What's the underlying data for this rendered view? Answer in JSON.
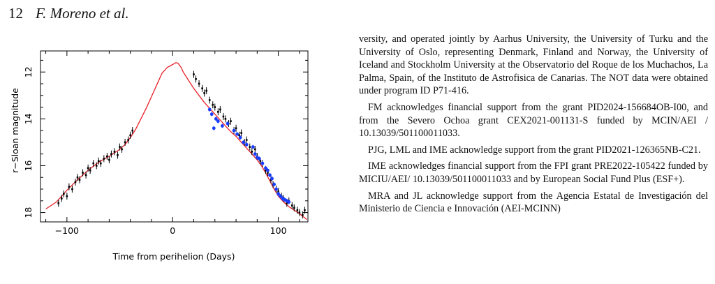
{
  "header": {
    "page_number": "12",
    "authors": "F. Moreno et al."
  },
  "figure": {
    "x_label": "Time from perihelion (Days)",
    "y_label": "r−Sloan magnitude"
  },
  "chart_data": {
    "type": "scatter",
    "xlabel": "Time from perihelion (Days)",
    "ylabel": "r−Sloan magnitude",
    "xlim": [
      -125,
      128
    ],
    "ylim": [
      11.1,
      18.4
    ],
    "y_inverted": true,
    "x_ticks": [
      -100,
      0,
      100
    ],
    "x_tick_labels": [
      "−100",
      "0",
      "100"
    ],
    "y_ticks": [
      12,
      14,
      16,
      18
    ],
    "y_tick_labels": [
      "12",
      "14",
      "16",
      "18"
    ],
    "grid": false,
    "series": [
      {
        "kind": "line",
        "color": "#e8202a",
        "x": [
          -120,
          -110,
          -100,
          -90,
          -80,
          -70,
          -60,
          -50,
          -45,
          -40,
          -35,
          -30,
          -25,
          -20,
          -15,
          -10,
          -5,
          0,
          3,
          5,
          8,
          10,
          15,
          20,
          25,
          30,
          35,
          40,
          45,
          50,
          55,
          60,
          65,
          70,
          75,
          80,
          84,
          88,
          92,
          96,
          100,
          105,
          110,
          115,
          120,
          127
        ],
        "y": [
          17.85,
          17.55,
          17.05,
          16.6,
          16.2,
          15.85,
          15.6,
          15.3,
          15.1,
          14.8,
          14.45,
          14.0,
          13.55,
          13.05,
          12.55,
          12.05,
          11.8,
          11.68,
          11.6,
          11.62,
          11.8,
          12.0,
          12.35,
          12.7,
          13.0,
          13.3,
          13.55,
          13.8,
          14.05,
          14.3,
          14.55,
          14.75,
          15.0,
          15.25,
          15.5,
          15.75,
          16.0,
          16.3,
          16.65,
          17.0,
          17.3,
          17.55,
          17.75,
          17.9,
          18.05,
          18.3
        ]
      },
      {
        "kind": "points",
        "color": "#000000",
        "x": [
          -108,
          -105,
          -103,
          -100,
          -98,
          -95,
          -92,
          -90,
          -88,
          -85,
          -82,
          -80,
          -78,
          -75,
          -72,
          -70,
          -68,
          -65,
          -62,
          -60,
          -58,
          -55,
          -52,
          -50,
          -48,
          -45,
          -42,
          -40,
          -38,
          20,
          22,
          25,
          28,
          30,
          32,
          35,
          38,
          40,
          43,
          45,
          48,
          50,
          53,
          55,
          58,
          60,
          63,
          65,
          68,
          70,
          73,
          75,
          78,
          80,
          83,
          85,
          88,
          90,
          93,
          95,
          98,
          100,
          103,
          105,
          108,
          110,
          113,
          115,
          118,
          120,
          123,
          125
        ],
        "y": [
          17.6,
          17.4,
          17.2,
          17.3,
          16.9,
          17.0,
          16.7,
          16.5,
          16.6,
          16.3,
          16.4,
          16.1,
          16.2,
          15.9,
          16.0,
          15.8,
          15.9,
          15.7,
          15.6,
          15.75,
          15.5,
          15.4,
          15.55,
          15.2,
          15.3,
          15.0,
          14.9,
          14.7,
          14.5,
          12.1,
          12.3,
          12.5,
          12.7,
          12.9,
          12.8,
          13.2,
          13.4,
          13.5,
          13.7,
          13.6,
          13.9,
          14.0,
          14.2,
          14.1,
          14.5,
          14.4,
          14.7,
          14.6,
          15.0,
          14.9,
          15.2,
          15.4,
          15.3,
          15.6,
          15.8,
          15.9,
          16.2,
          16.3,
          16.6,
          16.8,
          17.0,
          17.1,
          17.3,
          17.4,
          17.6,
          17.5,
          17.7,
          17.8,
          17.9,
          18.0,
          18.1,
          17.9
        ]
      },
      {
        "kind": "points",
        "color": "#1a3cff",
        "x": [
          35,
          37,
          39,
          41,
          43,
          47,
          52,
          58,
          61,
          64,
          67,
          70,
          76,
          78,
          80,
          82,
          85,
          88,
          90,
          92,
          94,
          96,
          98,
          100,
          102,
          104,
          106,
          108,
          110
        ],
        "y": [
          13.6,
          13.8,
          14.4,
          14.0,
          14.1,
          14.3,
          14.2,
          14.5,
          14.65,
          14.8,
          15.0,
          15.1,
          15.2,
          15.5,
          15.65,
          15.7,
          15.9,
          16.1,
          16.2,
          16.4,
          16.55,
          16.8,
          17.0,
          17.2,
          17.3,
          17.4,
          17.45,
          17.5,
          17.55
        ]
      }
    ]
  },
  "body": {
    "paragraphs": [
      "versity, and operated jointly by Aarhus University, the University of Turku and the University of Oslo, representing Denmark, Finland and Norway, the University of Iceland and Stockholm University at the Observatorio del Roque de los Muchachos, La Palma, Spain, of the Instituto de Astrofisica de Canarias. The NOT data were obtained under program ID P71-416.",
      "FM acknowledges financial support from the grant PID2024-156684OB-I00, and from the Severo Ochoa grant CEX2021-001131-S funded by MCIN/AEI / 10.13039/501100011033.",
      "PJG, LML and IME acknowledge support from the grant PID2021-126365NB-C21.",
      "IME acknowledges financial support from the FPI grant PRE2022-105422 funded by MICIU/AEI/ 10.13039/501100011033 and by European Social Fund Plus (ESF+).",
      "MRA and JL acknowledge support from the Agencia Estatal de Investigación del Ministerio de Ciencia e Innovación (AEI-MCINN)"
    ]
  }
}
